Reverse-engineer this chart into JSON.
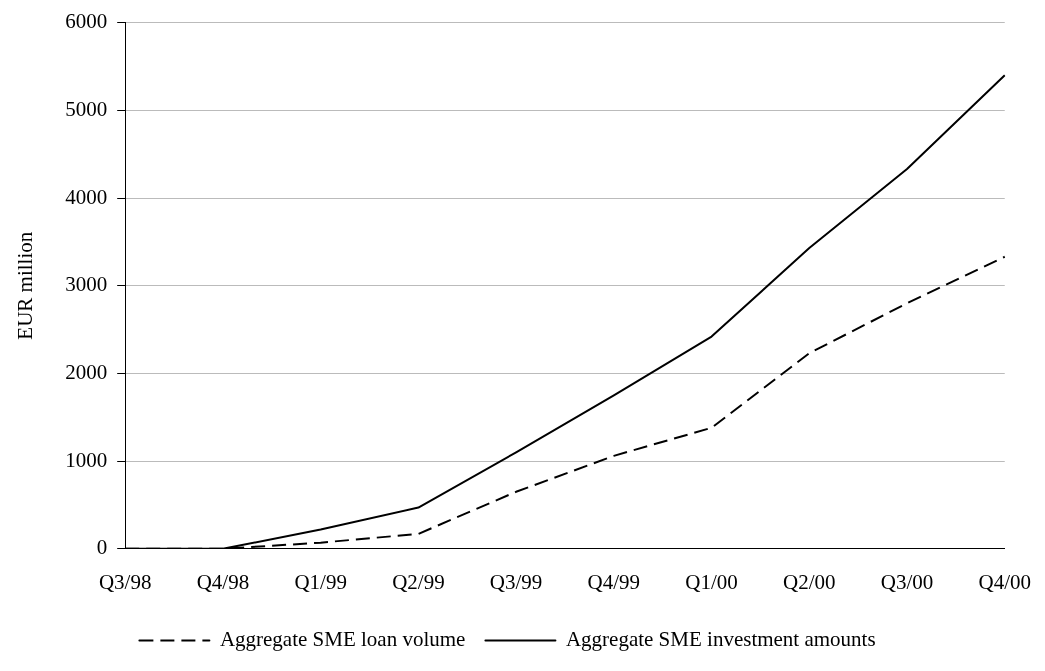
{
  "chart_data": {
    "type": "line",
    "ylabel": "EUR million",
    "categories": [
      "Q3/98",
      "Q4/98",
      "Q1/99",
      "Q2/99",
      "Q3/99",
      "Q4/99",
      "Q1/00",
      "Q2/00",
      "Q3/00",
      "Q4/00"
    ],
    "series": [
      {
        "name": "Aggregate SME loan volume",
        "color": "#000000",
        "line_style": "dashed",
        "values": [
          0,
          0,
          70,
          170,
          650,
          1060,
          1380,
          2230,
          2800,
          3330
        ]
      },
      {
        "name": "Aggregate SME investment amounts",
        "color": "#000000",
        "line_style": "solid",
        "values": [
          0,
          0,
          220,
          470,
          1100,
          1750,
          2420,
          3430,
          4330,
          5400
        ]
      }
    ],
    "ylim": [
      0,
      6000
    ],
    "yticks": [
      0,
      1000,
      2000,
      3000,
      4000,
      5000,
      6000
    ],
    "grid": "y",
    "legend": "bottom",
    "marker": "none"
  }
}
